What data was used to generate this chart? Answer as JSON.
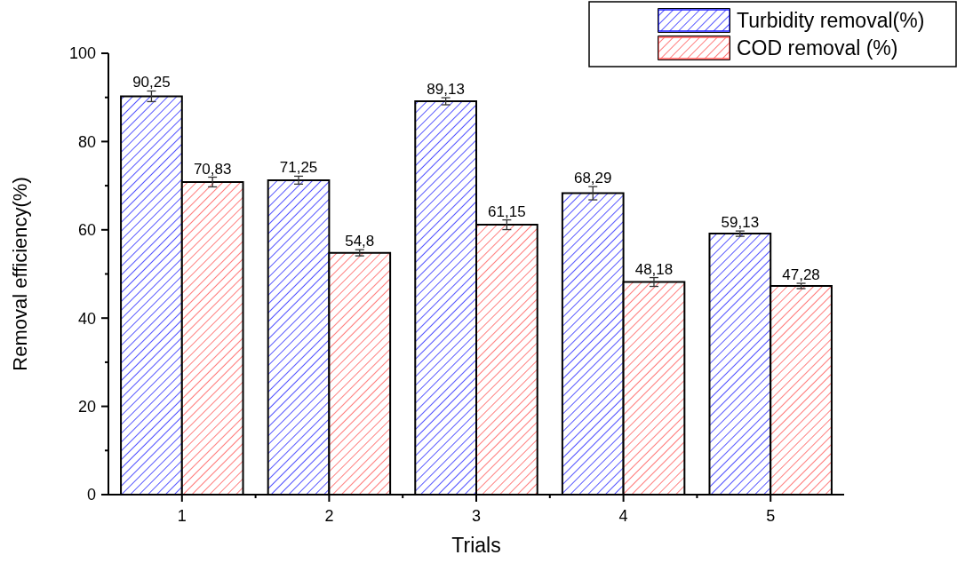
{
  "chart_data": {
    "type": "bar",
    "xlabel": "Trials",
    "ylabel": "Removal  efficiency(%)",
    "categories": [
      "1",
      "2",
      "3",
      "4",
      "5"
    ],
    "series": [
      {
        "name": "Turbidity removal(%)",
        "color": "#1a1aff",
        "values": [
          90.25,
          71.25,
          89.13,
          68.29,
          59.13
        ],
        "errors": [
          1.2,
          0.9,
          0.8,
          1.5,
          0.6
        ],
        "value_labels": [
          "90,25",
          "71,25",
          "89,13",
          "68,29",
          "59,13"
        ]
      },
      {
        "name": "COD removal (%)",
        "color": "#ff5050",
        "values": [
          70.83,
          54.8,
          61.15,
          48.18,
          47.28
        ],
        "errors": [
          1.1,
          0.7,
          1.1,
          1,
          0.6
        ],
        "value_labels": [
          "70,83",
          "54,8",
          "61,15",
          "48,18",
          "47,28"
        ]
      }
    ],
    "ylim": [
      0,
      100
    ],
    "yticks": [
      0,
      20,
      40,
      60,
      80,
      100
    ],
    "legend": "top right",
    "grid": false
  }
}
